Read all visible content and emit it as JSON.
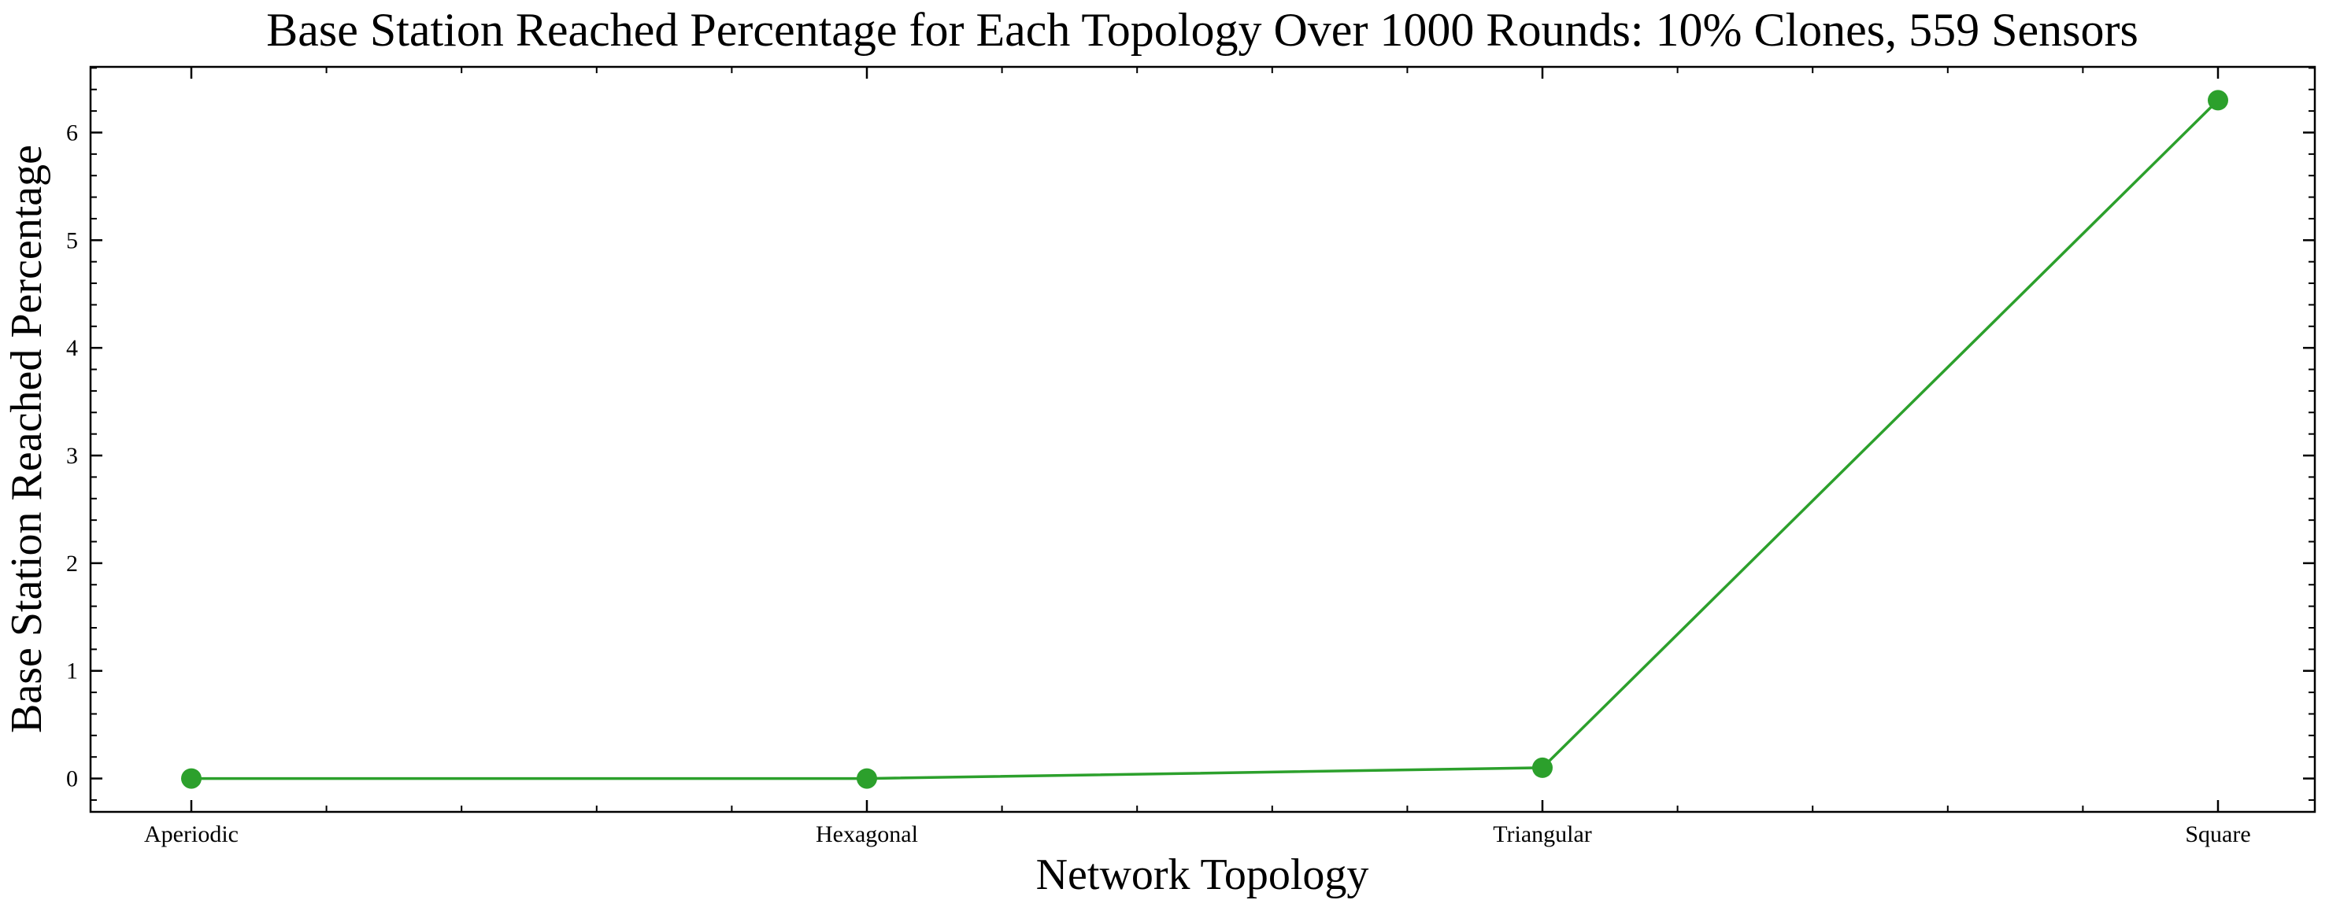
{
  "chart_data": {
    "type": "line",
    "title": "Base Station Reached Percentage for Each Topology Over 1000 Rounds: 10% Clones, 559 Sensors",
    "xlabel": "Network Topology",
    "ylabel": "Base Station Reached Percentage",
    "categories": [
      "Aperiodic",
      "Hexagonal",
      "Triangular",
      "Square"
    ],
    "series": [
      {
        "values": [
          0.0,
          0.0,
          0.1,
          6.3
        ],
        "color": "#2ca02c"
      }
    ],
    "ylim": [
      -0.31,
      6.61
    ],
    "yticks": [
      "0",
      "1",
      "2",
      "3",
      "4",
      "5",
      "6"
    ],
    "grid": false,
    "legend": "none"
  }
}
